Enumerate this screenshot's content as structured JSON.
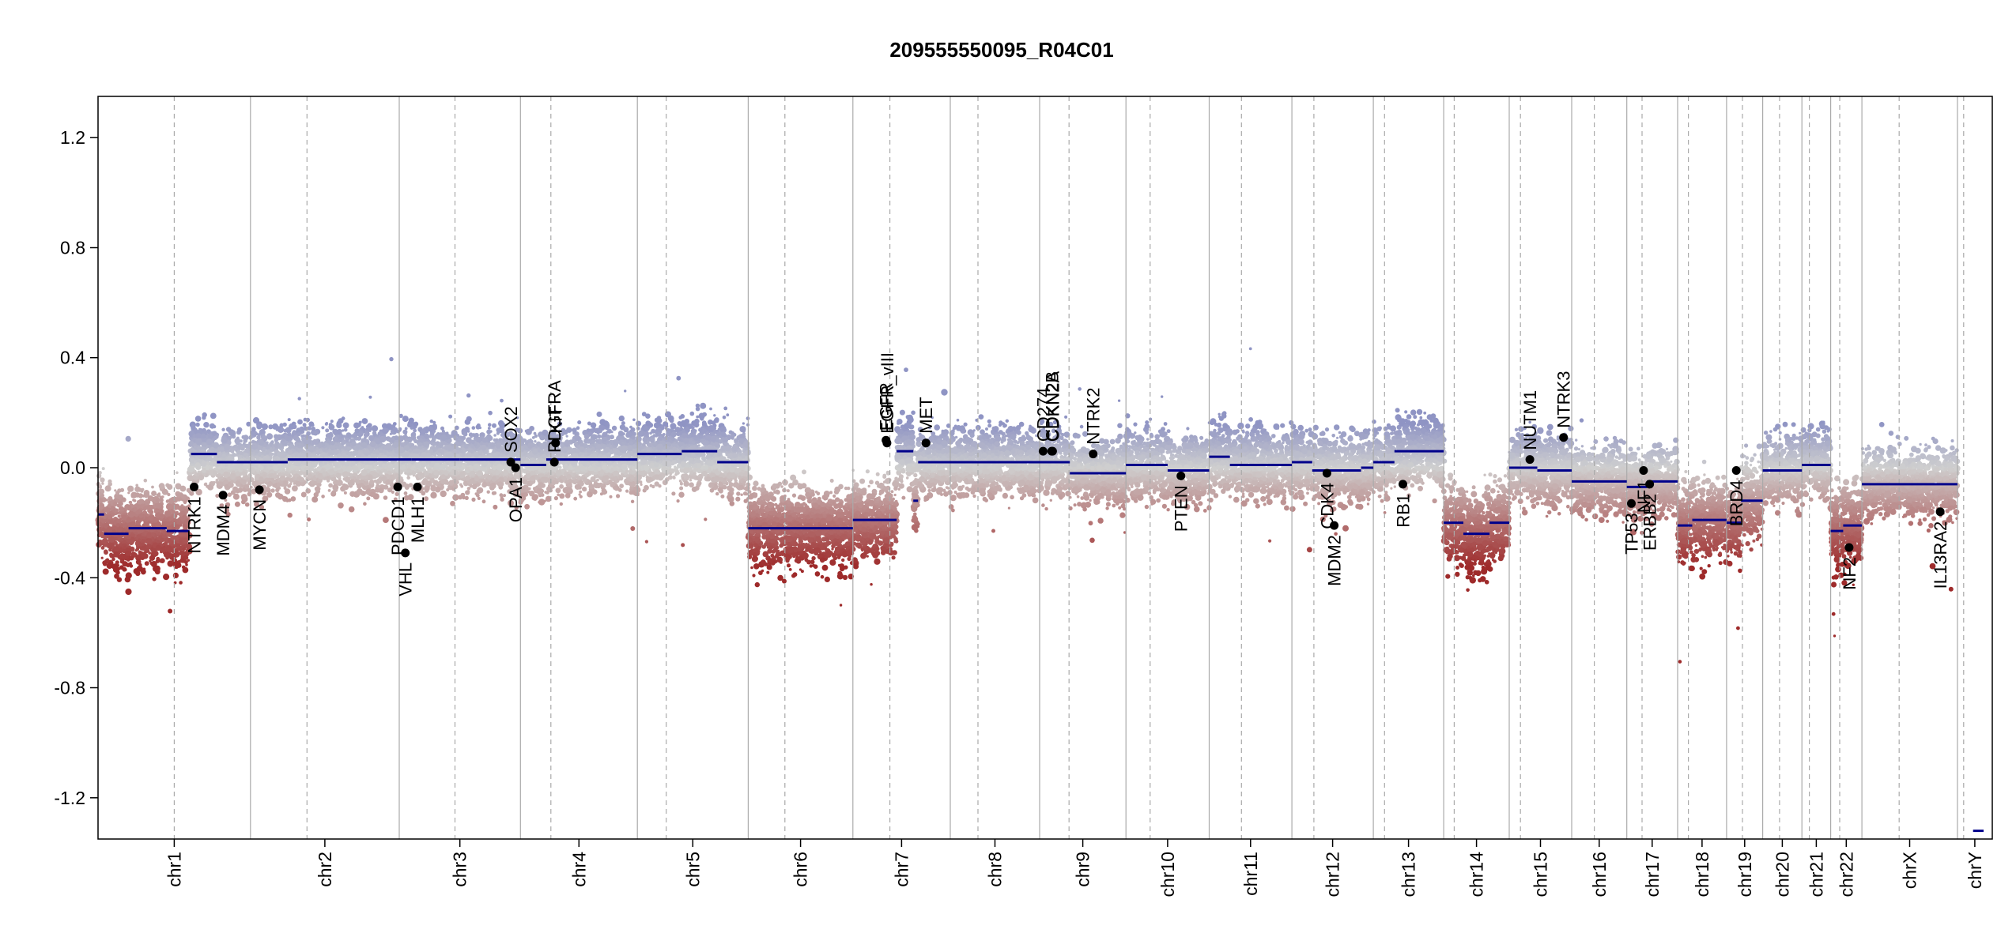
{
  "chart_data": {
    "type": "scatter",
    "title": "209555550095_R04C01",
    "xlabel": "",
    "ylabel": "",
    "ylim": [
      -1.35,
      1.35
    ],
    "yticks": [
      -1.2,
      -0.8,
      -0.4,
      0.0,
      0.4,
      0.8,
      1.2
    ],
    "ytick_labels": [
      "-1.2",
      "-0.8",
      "-0.4",
      "0.0",
      "0.4",
      "0.8",
      "1.2"
    ],
    "grid": false,
    "colors": {
      "gain": "#8f94c4",
      "neutral": "#cfcfcf",
      "loss": "#9e2a2a",
      "segment": "#00008b",
      "axis": "#000000",
      "boundary": "#aaaaaa"
    },
    "chromosomes": [
      {
        "name": "chr1",
        "size": 249,
        "centromere": 0.5
      },
      {
        "name": "chr2",
        "size": 243,
        "centromere": 0.38
      },
      {
        "name": "chr3",
        "size": 198,
        "centromere": 0.46
      },
      {
        "name": "chr4",
        "size": 191,
        "centromere": 0.26
      },
      {
        "name": "chr5",
        "size": 181,
        "centromere": 0.26
      },
      {
        "name": "chr6",
        "size": 171,
        "centromere": 0.35
      },
      {
        "name": "chr7",
        "size": 159,
        "centromere": 0.38
      },
      {
        "name": "chr8",
        "size": 146,
        "centromere": 0.31
      },
      {
        "name": "chr9",
        "size": 141,
        "centromere": 0.34
      },
      {
        "name": "chr10",
        "size": 136,
        "centromere": 0.29
      },
      {
        "name": "chr11",
        "size": 135,
        "centromere": 0.39
      },
      {
        "name": "chr12",
        "size": 133,
        "centromere": 0.27
      },
      {
        "name": "chr13",
        "size": 115,
        "centromere": 0.16
      },
      {
        "name": "chr14",
        "size": 107,
        "centromere": 0.16
      },
      {
        "name": "chr15",
        "size": 102,
        "centromere": 0.18
      },
      {
        "name": "chr16",
        "size": 90,
        "centromere": 0.41
      },
      {
        "name": "chr17",
        "size": 83,
        "centromere": 0.3
      },
      {
        "name": "chr18",
        "size": 80,
        "centromere": 0.22
      },
      {
        "name": "chr19",
        "size": 59,
        "centromere": 0.44
      },
      {
        "name": "chr20",
        "size": 64,
        "centromere": 0.43
      },
      {
        "name": "chr21",
        "size": 47,
        "centromere": 0.26
      },
      {
        "name": "chr22",
        "size": 51,
        "centromere": 0.29
      },
      {
        "name": "chrX",
        "size": 156,
        "centromere": 0.39
      },
      {
        "name": "chrY",
        "size": 57,
        "centromere": 0.18
      }
    ],
    "segments": [
      {
        "chr": 0,
        "from": 0.0,
        "to": 0.04,
        "value": -0.17
      },
      {
        "chr": 0,
        "from": 0.04,
        "to": 0.2,
        "value": -0.24
      },
      {
        "chr": 0,
        "from": 0.2,
        "to": 0.45,
        "value": -0.22
      },
      {
        "chr": 0,
        "from": 0.45,
        "to": 0.6,
        "value": -0.23
      },
      {
        "chr": 0,
        "from": 0.61,
        "to": 0.78,
        "value": 0.05
      },
      {
        "chr": 0,
        "from": 0.78,
        "to": 1.0,
        "value": 0.02
      },
      {
        "chr": 1,
        "from": 0.0,
        "to": 0.25,
        "value": 0.02
      },
      {
        "chr": 1,
        "from": 0.25,
        "to": 1.0,
        "value": 0.03
      },
      {
        "chr": 2,
        "from": 0.0,
        "to": 0.1,
        "value": 0.03
      },
      {
        "chr": 2,
        "from": 0.1,
        "to": 0.5,
        "value": 0.03
      },
      {
        "chr": 2,
        "from": 0.5,
        "to": 1.0,
        "value": 0.03
      },
      {
        "chr": 3,
        "from": 0.0,
        "to": 0.22,
        "value": 0.01
      },
      {
        "chr": 3,
        "from": 0.22,
        "to": 1.0,
        "value": 0.03
      },
      {
        "chr": 4,
        "from": 0.0,
        "to": 0.4,
        "value": 0.05
      },
      {
        "chr": 4,
        "from": 0.4,
        "to": 0.72,
        "value": 0.06
      },
      {
        "chr": 4,
        "from": 0.72,
        "to": 1.0,
        "value": 0.02
      },
      {
        "chr": 5,
        "from": 0.0,
        "to": 0.45,
        "value": -0.22
      },
      {
        "chr": 5,
        "from": 0.45,
        "to": 1.0,
        "value": -0.22
      },
      {
        "chr": 6,
        "from": 0.0,
        "to": 0.45,
        "value": -0.19
      },
      {
        "chr": 6,
        "from": 0.45,
        "to": 0.62,
        "value": 0.06
      },
      {
        "chr": 6,
        "from": 0.62,
        "to": 0.67,
        "value": -0.12
      },
      {
        "chr": 6,
        "from": 0.67,
        "to": 1.0,
        "value": 0.02
      },
      {
        "chr": 7,
        "from": 0.0,
        "to": 1.0,
        "value": 0.02
      },
      {
        "chr": 8,
        "from": 0.0,
        "to": 0.35,
        "value": 0.02
      },
      {
        "chr": 8,
        "from": 0.35,
        "to": 1.0,
        "value": -0.02
      },
      {
        "chr": 9,
        "from": 0.0,
        "to": 0.5,
        "value": 0.01
      },
      {
        "chr": 9,
        "from": 0.5,
        "to": 1.0,
        "value": -0.01
      },
      {
        "chr": 10,
        "from": 0.0,
        "to": 0.25,
        "value": 0.04
      },
      {
        "chr": 10,
        "from": 0.25,
        "to": 1.0,
        "value": 0.01
      },
      {
        "chr": 11,
        "from": 0.0,
        "to": 0.25,
        "value": 0.02
      },
      {
        "chr": 11,
        "from": 0.25,
        "to": 0.85,
        "value": -0.01
      },
      {
        "chr": 11,
        "from": 0.85,
        "to": 1.0,
        "value": 0.0
      },
      {
        "chr": 12,
        "from": 0.0,
        "to": 0.3,
        "value": 0.02
      },
      {
        "chr": 12,
        "from": 0.3,
        "to": 1.0,
        "value": 0.06
      },
      {
        "chr": 13,
        "from": 0.0,
        "to": 0.3,
        "value": -0.2
      },
      {
        "chr": 13,
        "from": 0.3,
        "to": 0.7,
        "value": -0.24
      },
      {
        "chr": 13,
        "from": 0.7,
        "to": 1.0,
        "value": -0.2
      },
      {
        "chr": 14,
        "from": 0.0,
        "to": 0.45,
        "value": 0.0
      },
      {
        "chr": 14,
        "from": 0.45,
        "to": 1.0,
        "value": -0.01
      },
      {
        "chr": 15,
        "from": 0.0,
        "to": 1.0,
        "value": -0.05
      },
      {
        "chr": 16,
        "from": 0.0,
        "to": 0.4,
        "value": -0.07
      },
      {
        "chr": 16,
        "from": 0.4,
        "to": 1.0,
        "value": -0.05
      },
      {
        "chr": 17,
        "from": 0.0,
        "to": 0.3,
        "value": -0.21
      },
      {
        "chr": 17,
        "from": 0.3,
        "to": 1.0,
        "value": -0.19
      },
      {
        "chr": 18,
        "from": 0.0,
        "to": 0.4,
        "value": -0.2
      },
      {
        "chr": 18,
        "from": 0.4,
        "to": 1.0,
        "value": -0.12
      },
      {
        "chr": 19,
        "from": 0.0,
        "to": 1.0,
        "value": -0.01
      },
      {
        "chr": 20,
        "from": 0.0,
        "to": 1.0,
        "value": 0.01
      },
      {
        "chr": 21,
        "from": 0.0,
        "to": 0.4,
        "value": -0.23
      },
      {
        "chr": 21,
        "from": 0.4,
        "to": 1.0,
        "value": -0.21
      },
      {
        "chr": 22,
        "from": 0.0,
        "to": 1.0,
        "value": -0.06
      },
      {
        "chr": 23,
        "from": 0.45,
        "to": 0.75,
        "value": -1.32
      }
    ],
    "genes": [
      {
        "name": "NTRK1",
        "chr": 0,
        "pos": 0.63,
        "value": -0.07
      },
      {
        "name": "MDM4",
        "chr": 0,
        "pos": 0.82,
        "value": -0.1
      },
      {
        "name": "MYCN",
        "chr": 1,
        "pos": 0.06,
        "value": -0.08
      },
      {
        "name": "VHL",
        "chr": 2,
        "pos": 0.05,
        "value": -0.31
      },
      {
        "name": "PDCD1",
        "chr": 1,
        "pos": 0.99,
        "value": -0.07
      },
      {
        "name": "MLH1",
        "chr": 2,
        "pos": 0.15,
        "value": -0.07
      },
      {
        "name": "SOX2",
        "chr": 2,
        "pos": 0.92,
        "value": 0.02
      },
      {
        "name": "OPA1",
        "chr": 2,
        "pos": 0.96,
        "value": 0.0
      },
      {
        "name": "PDGFRA",
        "chr": 3,
        "pos": 0.29,
        "value": 0.02
      },
      {
        "name": "KIT",
        "chr": 3,
        "pos": 0.3,
        "value": 0.09
      },
      {
        "name": "EGFR",
        "chr": 6,
        "pos": 0.34,
        "value": 0.1
      },
      {
        "name": "EGFR_vIII",
        "chr": 6,
        "pos": 0.35,
        "value": 0.09
      },
      {
        "name": "MET",
        "chr": 6,
        "pos": 0.75,
        "value": 0.09
      },
      {
        "name": "CD274",
        "chr": 8,
        "pos": 0.04,
        "value": 0.06
      },
      {
        "name": "CDKN2A",
        "chr": 8,
        "pos": 0.15,
        "value": 0.06
      },
      {
        "name": "CDKN2B",
        "chr": 8,
        "pos": 0.14,
        "value": 0.06
      },
      {
        "name": "NTRK2",
        "chr": 8,
        "pos": 0.62,
        "value": 0.05
      },
      {
        "name": "PTEN",
        "chr": 9,
        "pos": 0.66,
        "value": -0.03
      },
      {
        "name": "MDM2",
        "chr": 11,
        "pos": 0.52,
        "value": -0.21
      },
      {
        "name": "CDK4",
        "chr": 11,
        "pos": 0.43,
        "value": -0.02
      },
      {
        "name": "RB1",
        "chr": 12,
        "pos": 0.42,
        "value": -0.06
      },
      {
        "name": "NUTM1",
        "chr": 14,
        "pos": 0.33,
        "value": 0.03
      },
      {
        "name": "NTRK3",
        "chr": 14,
        "pos": 0.87,
        "value": 0.11
      },
      {
        "name": "TP53",
        "chr": 16,
        "pos": 0.09,
        "value": -0.13
      },
      {
        "name": "NF1",
        "chr": 16,
        "pos": 0.33,
        "value": -0.01
      },
      {
        "name": "ERBB2",
        "chr": 16,
        "pos": 0.45,
        "value": -0.06
      },
      {
        "name": "BRD4",
        "chr": 18,
        "pos": 0.27,
        "value": -0.01
      },
      {
        "name": "NF2",
        "chr": 21,
        "pos": 0.59,
        "value": -0.29
      },
      {
        "name": "IL13RA2",
        "chr": 22,
        "pos": 0.82,
        "value": -0.16
      }
    ]
  }
}
